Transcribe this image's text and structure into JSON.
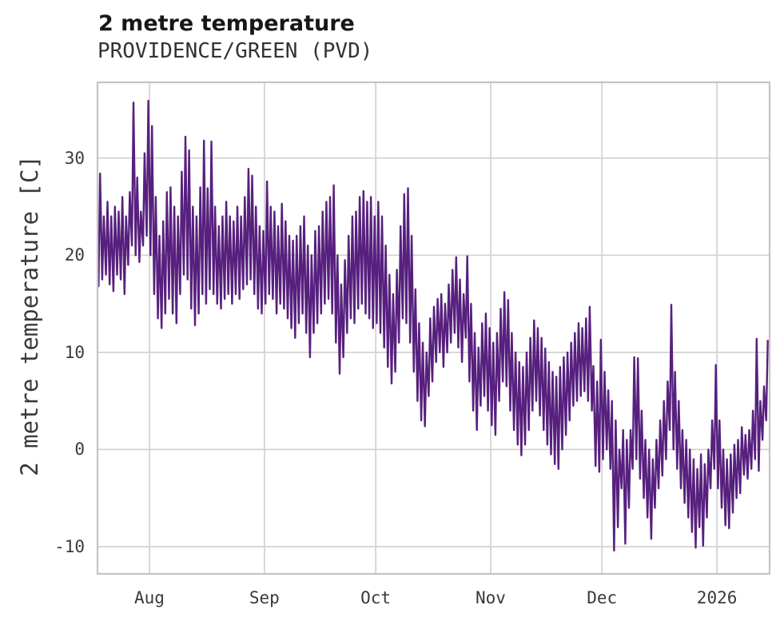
{
  "page": {
    "background": "#ffffff"
  },
  "header": {
    "title": "2 metre temperature",
    "subtitle": "PROVIDENCE/GREEN (PVD)"
  },
  "chart_data": {
    "type": "line",
    "title": "2 metre temperature",
    "subtitle": "PROVIDENCE/GREEN (PVD)",
    "xlabel": "",
    "ylabel": "2 metre temperature [C]",
    "grid": true,
    "legend": null,
    "colors": {
      "line": "#57207e",
      "grid": "#d2d2d2",
      "border": "#c4c4c4",
      "tick_label": "#3a3a3a",
      "title": "#171717",
      "subtitle": "#333333",
      "background": "#ffffff"
    },
    "x_axis": {
      "description": "time, daily index from first plotted day (mid-July) to mid-January",
      "range_days": [
        0,
        181.2
      ],
      "ticks": [
        {
          "label": "Aug",
          "day": 14
        },
        {
          "label": "Sep",
          "day": 45
        },
        {
          "label": "Oct",
          "day": 75
        },
        {
          "label": "Nov",
          "day": 106
        },
        {
          "label": "Dec",
          "day": 136
        },
        {
          "label": "2026",
          "day": 167
        }
      ]
    },
    "y_axis": {
      "unit": "C",
      "range": [
        -12.8,
        37.8
      ],
      "ticks": [
        30,
        20,
        10,
        0,
        -10
      ]
    },
    "series": [
      {
        "name": "2 metre temperature",
        "sampling": "approximate daily minimum / maximum read from the plot; rendered as a diurnal zigzag",
        "low_phase_of_day": 0.28,
        "high_phase_of_day": 0.7,
        "lead_point": {
          "day": 0.02,
          "value": 21
        },
        "daily_min": [
          16.8,
          17.5,
          18,
          17,
          16.3,
          18,
          17.5,
          16,
          19,
          21,
          20,
          19.3,
          21,
          22,
          20,
          16,
          13.5,
          12.5,
          14,
          15.5,
          14,
          13,
          16,
          18,
          17.5,
          14.5,
          12.8,
          14,
          16,
          15,
          16.5,
          16,
          15,
          14.5,
          15.5,
          16,
          15,
          16,
          15.5,
          16.5,
          17,
          17.5,
          16,
          14.5,
          14,
          15,
          16,
          15.5,
          14,
          15,
          14.5,
          13.5,
          12.5,
          11.5,
          13,
          14,
          12,
          9.5,
          12,
          13,
          14,
          15,
          15.5,
          14,
          11,
          7.8,
          9.5,
          12,
          13.5,
          13,
          14.5,
          15,
          14,
          13.5,
          12.5,
          13,
          12,
          10.5,
          8.5,
          6.8,
          8,
          11,
          13.5,
          13,
          11,
          8,
          5,
          3,
          2.4,
          5.5,
          7,
          9,
          10,
          8.5,
          10,
          11,
          12,
          10.5,
          9,
          11.5,
          7,
          4,
          2,
          4.5,
          5.5,
          4,
          2.5,
          1.5,
          5,
          7,
          6.5,
          4,
          2,
          0.5,
          -0.6,
          0.5,
          2,
          4,
          5,
          3.5,
          2,
          0.5,
          -0.5,
          -1.5,
          -2,
          0,
          1.5,
          3,
          4.5,
          5,
          5.5,
          6,
          5,
          4,
          -1.7,
          -2.3,
          -1,
          0,
          -2,
          -10.4,
          -8,
          -4,
          -9.7,
          -6,
          -2,
          -1,
          -3,
          -5,
          -7,
          -9.2,
          -6,
          -4,
          -2.7,
          -1,
          2,
          0,
          -2,
          -4,
          -5.5,
          -7,
          -8.5,
          -10.1,
          -8,
          -9.9,
          -7,
          -4,
          -2,
          -4,
          -6,
          -7.8,
          -8.1,
          -6.5,
          -5,
          -4.5,
          -2.6,
          -3,
          -2,
          -1,
          -2.2,
          1,
          3
        ],
        "daily_max": [
          28.4,
          24,
          25.5,
          24,
          25,
          24.5,
          26,
          24,
          26.5,
          35.7,
          28,
          24.5,
          30.5,
          35.9,
          33.3,
          26,
          22,
          23.5,
          26.5,
          27,
          25,
          24,
          28.6,
          32.2,
          30.8,
          25,
          24,
          27,
          31.8,
          26.9,
          31.7,
          25,
          23,
          24,
          25.5,
          24,
          23.5,
          25,
          24,
          26,
          28.9,
          28.2,
          25,
          23,
          22.5,
          27.6,
          25,
          24.5,
          23,
          25.3,
          23.5,
          22,
          21.5,
          22,
          23,
          24,
          21,
          20,
          22.5,
          23,
          24.5,
          25.5,
          26,
          27.2,
          20,
          17,
          19.5,
          22,
          24,
          24.5,
          26,
          26.6,
          25.5,
          26,
          24,
          25.5,
          24,
          21,
          18,
          16,
          18.5,
          23,
          26.3,
          26.9,
          22,
          16.5,
          13,
          11,
          10,
          13.5,
          14.7,
          15.5,
          16,
          15,
          17,
          18.5,
          19.8,
          17.5,
          16,
          19.9,
          15,
          12,
          10.5,
          13,
          14,
          12.5,
          11,
          12,
          14.5,
          16.2,
          15.4,
          12,
          10,
          9,
          8.5,
          10,
          11.5,
          13.3,
          12.5,
          11.5,
          10.4,
          9,
          8,
          7.5,
          8.5,
          9.5,
          10,
          11,
          12,
          13,
          12.5,
          13.5,
          14.7,
          8.6,
          7,
          11.3,
          8,
          6.1,
          5,
          3,
          0,
          2,
          1,
          2,
          9.5,
          9.4,
          4,
          1,
          0,
          -1,
          1,
          3,
          5,
          7,
          14.9,
          8,
          5,
          2,
          1,
          0,
          -1,
          -2,
          -0.5,
          -1.5,
          0,
          3,
          8.7,
          3,
          0,
          -1,
          -0.5,
          0.5,
          1,
          2.3,
          1.5,
          2,
          4,
          11.4,
          5,
          6.5,
          11.2
        ]
      }
    ]
  },
  "layout_labels": {
    "y_axis_title": "2 metre temperature [C]"
  }
}
